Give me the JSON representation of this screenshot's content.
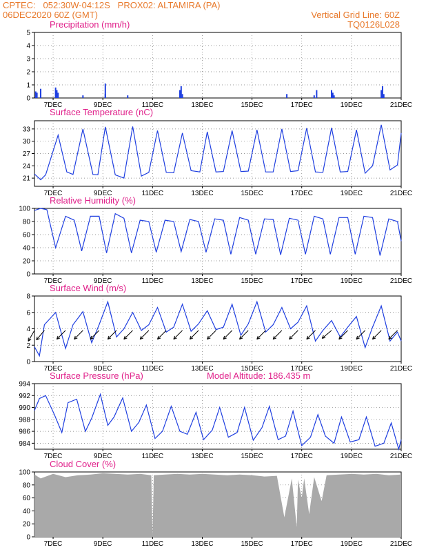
{
  "header": {
    "line1_left": "CPTEC:   052:30W-04:12S   PROX02: ALTAMIRA (PA)",
    "line2_left": "06DEC2020 60Z (GMT)",
    "line2_right": "Vertical Grid Line: 60Z",
    "line3_right": "TQ0126L028"
  },
  "x_ticks": [
    "7DEC",
    "9DEC",
    "11DEC",
    "13DEC",
    "15DEC",
    "17DEC",
    "19DEC",
    "21DEC"
  ],
  "colors": {
    "header": "#e8792b",
    "panel_title": "#e0208a",
    "series": "#1f3fe0",
    "cloud": "#a9a9a9",
    "wind_arrow": "#000000"
  },
  "chart_data": [
    {
      "type": "bar",
      "title": "Precipitation (mm/h)",
      "ylim": [
        0,
        5
      ],
      "yticks": [
        "0",
        "1",
        "2",
        "3",
        "4",
        "5"
      ],
      "x_range_days": [
        6.25,
        21.0
      ],
      "x": [
        6.3,
        6.35,
        6.5,
        7.1,
        7.15,
        7.2,
        8.2,
        9.1,
        9.1,
        10.0,
        12.1,
        12.15,
        12.2,
        16.4,
        17.5,
        17.6,
        18.2,
        18.25,
        18.3,
        20.2,
        20.25,
        20.3
      ],
      "values": [
        0.5,
        0.4,
        0.7,
        0.8,
        0.6,
        0.4,
        0.2,
        1.1,
        0.3,
        0.2,
        0.6,
        0.9,
        0.3,
        0.3,
        0.2,
        0.6,
        0.6,
        0.4,
        0.2,
        0.6,
        0.9,
        0.3
      ]
    },
    {
      "type": "line",
      "title": "Surface Temperature (nC)",
      "ylim": [
        19,
        35
      ],
      "yticks": [
        "21",
        "24",
        "27",
        "30",
        "33"
      ],
      "x": [
        6.25,
        6.5,
        6.7,
        7.2,
        7.55,
        7.8,
        8.2,
        8.6,
        8.8,
        9.1,
        9.5,
        9.85,
        10.2,
        10.55,
        10.85,
        11.2,
        11.55,
        11.85,
        12.2,
        12.55,
        12.9,
        13.2,
        13.55,
        13.85,
        14.2,
        14.55,
        14.85,
        15.2,
        15.55,
        15.85,
        16.2,
        16.55,
        16.85,
        17.2,
        17.55,
        17.85,
        18.2,
        18.55,
        18.85,
        19.2,
        19.55,
        19.85,
        20.2,
        20.55,
        20.85,
        21.0
      ],
      "values": [
        22.0,
        20.6,
        21.8,
        31.5,
        22.5,
        21.9,
        33.0,
        21.9,
        21.8,
        33.5,
        21.8,
        21.0,
        33.6,
        21.5,
        22.4,
        32.6,
        22.4,
        22.3,
        32.0,
        22.8,
        22.5,
        32.3,
        22.5,
        22.6,
        32.6,
        22.6,
        22.7,
        32.8,
        22.5,
        22.5,
        33.0,
        22.6,
        22.8,
        33.2,
        22.5,
        22.4,
        33.3,
        22.5,
        22.6,
        32.8,
        22.2,
        24.0,
        34.0,
        23.0,
        24.2,
        32.0
      ]
    },
    {
      "type": "line",
      "title": "Relative Humidity (%)",
      "ylim": [
        0,
        100
      ],
      "yticks": [
        "0",
        "20",
        "40",
        "60",
        "80",
        "100"
      ],
      "x": [
        6.25,
        6.5,
        6.75,
        7.1,
        7.5,
        7.85,
        8.15,
        8.5,
        8.85,
        9.15,
        9.5,
        9.85,
        10.15,
        10.5,
        10.85,
        11.15,
        11.5,
        11.85,
        12.15,
        12.5,
        12.85,
        13.15,
        13.5,
        13.85,
        14.15,
        14.5,
        14.85,
        15.15,
        15.5,
        15.85,
        16.15,
        16.5,
        16.85,
        17.15,
        17.5,
        17.85,
        18.15,
        18.5,
        18.85,
        19.15,
        19.5,
        19.85,
        20.15,
        20.5,
        20.85,
        21.0
      ],
      "values": [
        97,
        100,
        98,
        40,
        88,
        82,
        35,
        88,
        88,
        32,
        92,
        85,
        32,
        82,
        80,
        33,
        82,
        80,
        34,
        83,
        80,
        33,
        84,
        82,
        30,
        86,
        82,
        30,
        84,
        83,
        29,
        85,
        82,
        30,
        88,
        84,
        30,
        86,
        86,
        30,
        88,
        86,
        28,
        84,
        80,
        50
      ]
    },
    {
      "type": "line",
      "title": "Surface Wind (m/s)",
      "ylim": [
        0,
        8
      ],
      "yticks": [
        "0",
        "2",
        "4",
        "6",
        "8"
      ],
      "x": [
        6.25,
        6.45,
        6.65,
        7.1,
        7.5,
        7.8,
        8.2,
        8.55,
        8.85,
        9.2,
        9.55,
        9.85,
        10.2,
        10.55,
        10.85,
        11.2,
        11.55,
        11.85,
        12.2,
        12.55,
        12.85,
        13.2,
        13.55,
        13.85,
        14.2,
        14.55,
        14.85,
        15.2,
        15.55,
        15.85,
        16.2,
        16.55,
        16.85,
        17.2,
        17.55,
        17.85,
        18.2,
        18.55,
        18.85,
        19.2,
        19.55,
        19.85,
        20.2,
        20.55,
        20.85,
        21.0
      ],
      "values": [
        1.8,
        0.7,
        4.5,
        6.0,
        1.6,
        4.5,
        6.1,
        2.3,
        4.5,
        7.3,
        3.0,
        4.0,
        6.0,
        3.8,
        4.5,
        6.6,
        3.6,
        4.2,
        7.0,
        3.7,
        4.6,
        6.2,
        3.9,
        4.2,
        7.0,
        3.2,
        4.6,
        7.3,
        3.6,
        4.5,
        6.6,
        4.0,
        4.8,
        6.8,
        2.5,
        3.8,
        5.0,
        3.0,
        4.2,
        5.5,
        1.7,
        4.2,
        6.8,
        2.5,
        3.6,
        2.5
      ],
      "arrow_dirs_deg": [
        210,
        215,
        220,
        225,
        225,
        225,
        225,
        225,
        225,
        225,
        225,
        225,
        225,
        225,
        225,
        225,
        225,
        225,
        225,
        225,
        225,
        225,
        225,
        225,
        225,
        225,
        225,
        225,
        225,
        225,
        225,
        225,
        225,
        225,
        225,
        225,
        230,
        230,
        225,
        225,
        225,
        225,
        225,
        225,
        225,
        225
      ]
    },
    {
      "type": "line",
      "title": "Surface Pressure (hPa)",
      "annotation": "Model Altitude: 186.435 m",
      "ylim": [
        983,
        994
      ],
      "yticks": [
        "984",
        "986",
        "988",
        "990",
        "992",
        "994"
      ],
      "x": [
        6.25,
        6.45,
        6.7,
        7.05,
        7.35,
        7.6,
        7.95,
        8.3,
        8.55,
        8.9,
        9.2,
        9.45,
        9.8,
        10.15,
        10.45,
        10.75,
        11.1,
        11.4,
        11.75,
        12.1,
        12.4,
        12.75,
        13.05,
        13.4,
        13.7,
        14.05,
        14.4,
        14.7,
        15.05,
        15.4,
        15.7,
        16.05,
        16.35,
        16.65,
        17.0,
        17.35,
        17.65,
        17.95,
        18.3,
        18.6,
        18.95,
        19.3,
        19.6,
        19.95,
        20.3,
        20.6,
        20.9,
        21.0
      ],
      "values": [
        989.5,
        991.5,
        992.0,
        988.8,
        985.8,
        990.8,
        991.4,
        986.0,
        988.2,
        992.2,
        987.0,
        988.4,
        991.6,
        986.0,
        987.5,
        990.4,
        984.8,
        986.0,
        990.2,
        986.0,
        985.5,
        989.2,
        984.6,
        986.2,
        990.0,
        985.0,
        985.8,
        990.0,
        984.5,
        986.6,
        990.2,
        984.6,
        985.2,
        989.4,
        983.6,
        985.0,
        988.8,
        985.2,
        984.0,
        988.4,
        984.2,
        984.6,
        988.4,
        983.5,
        984.0,
        987.4,
        983.0,
        984.6
      ]
    },
    {
      "type": "area",
      "title": "Cloud Cover (%)",
      "ylim": [
        0,
        100
      ],
      "yticks": [
        "0",
        "20",
        "40",
        "60",
        "80",
        "100"
      ],
      "x": [
        6.25,
        6.5,
        7.0,
        7.5,
        8.0,
        8.5,
        9.0,
        9.5,
        10.0,
        10.5,
        10.95,
        11.0,
        11.05,
        11.5,
        12.0,
        12.5,
        13.0,
        13.5,
        14.0,
        14.5,
        15.0,
        15.5,
        16.0,
        16.3,
        16.6,
        16.8,
        16.85,
        17.0,
        17.1,
        17.3,
        17.5,
        17.8,
        18.0,
        18.5,
        19.0,
        19.5,
        20.0,
        20.5,
        21.0
      ],
      "values": [
        96,
        90,
        97,
        92,
        95,
        96,
        98,
        97,
        96,
        97,
        95,
        2,
        95,
        96,
        97,
        96,
        97,
        96,
        95,
        96,
        95,
        93,
        94,
        30,
        90,
        15,
        88,
        60,
        90,
        35,
        92,
        55,
        95,
        96,
        97,
        96,
        97,
        95,
        96
      ]
    }
  ]
}
